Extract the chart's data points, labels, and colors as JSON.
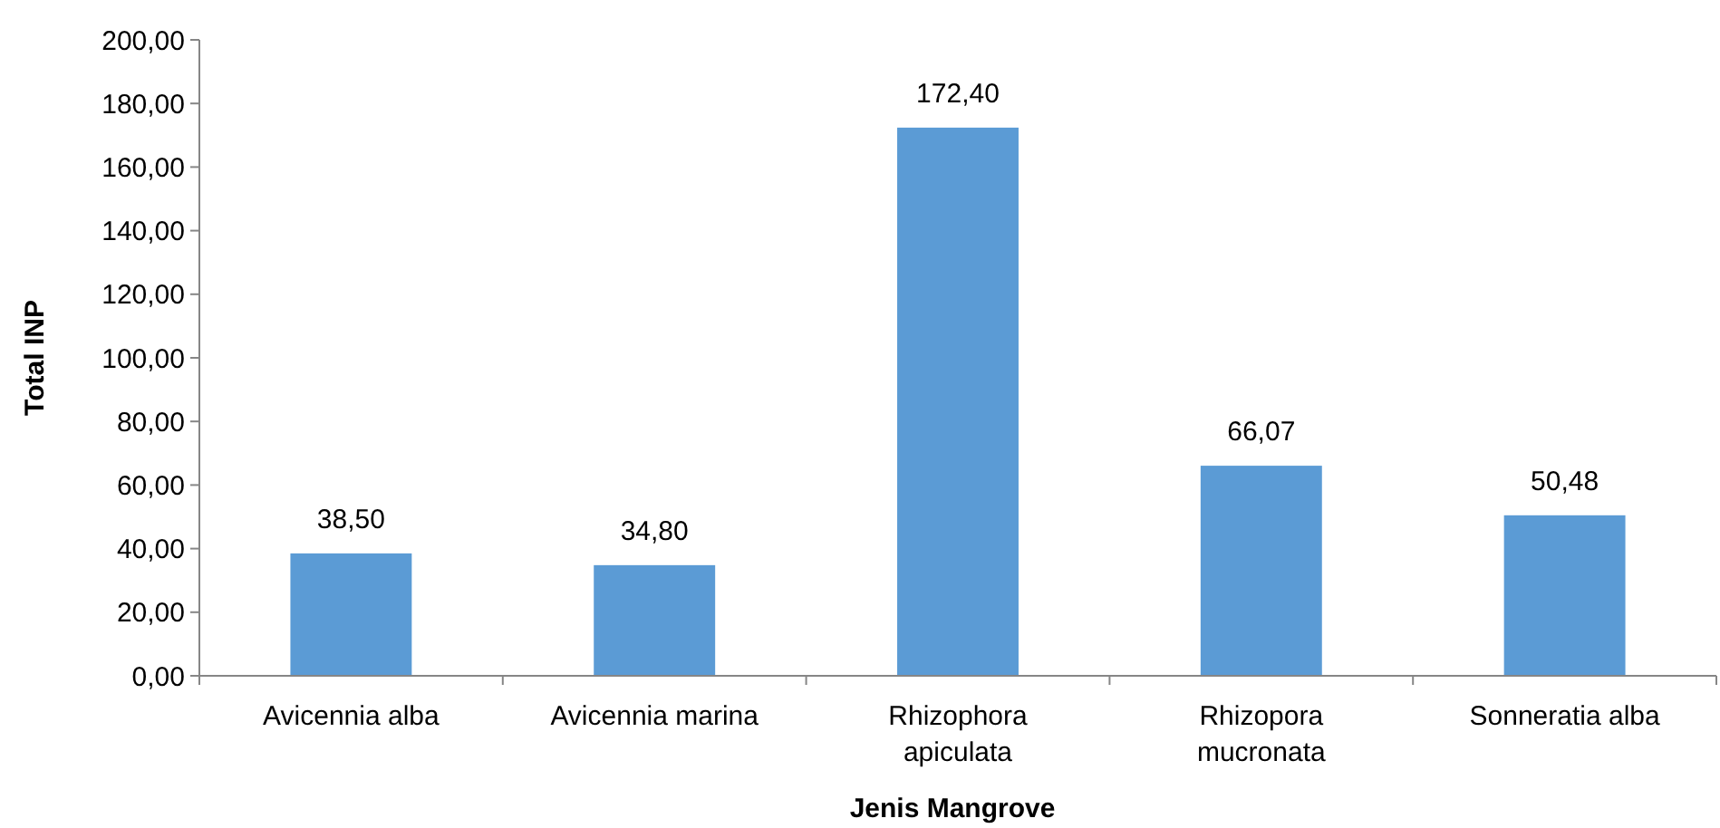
{
  "chart_data": {
    "type": "bar",
    "xlabel": "Jenis Mangrove",
    "ylabel": "Total INP",
    "categories": [
      "Avicennia alba",
      "Avicennia marina",
      "Rhizophora apiculata",
      "Rhizopora mucronata",
      "Sonneratia alba"
    ],
    "values": [
      38.5,
      34.8,
      172.4,
      66.07,
      50.48
    ],
    "value_labels": [
      "38,50",
      "34,80",
      "172,40",
      "66,07",
      "50,48"
    ],
    "color": "#5b9bd5",
    "ylim": [
      0,
      200
    ],
    "yticks": [
      {
        "value": 0,
        "label": "0,00"
      },
      {
        "value": 20,
        "label": "20,00"
      },
      {
        "value": 40,
        "label": "40,00"
      },
      {
        "value": 60,
        "label": "60,00"
      },
      {
        "value": 80,
        "label": "80,00"
      },
      {
        "value": 100,
        "label": "100,00"
      },
      {
        "value": 120,
        "label": "120,00"
      },
      {
        "value": 140,
        "label": "140,00"
      },
      {
        "value": 160,
        "label": "160,00"
      },
      {
        "value": 180,
        "label": "180,00"
      },
      {
        "value": 200,
        "label": "200,00"
      }
    ],
    "grid": false
  }
}
